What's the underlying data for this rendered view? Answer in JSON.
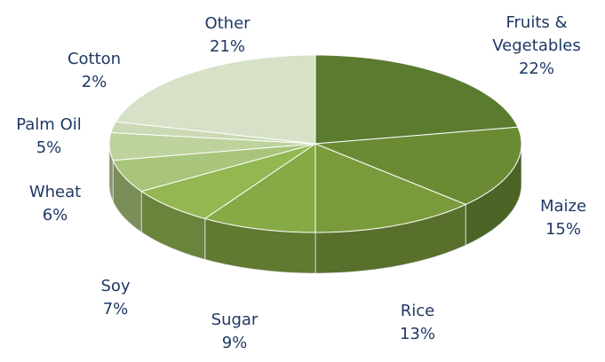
{
  "chart_data": {
    "type": "pie3d",
    "categories": [
      "Fruits & Vegetables",
      "Maize",
      "Rice",
      "Sugar",
      "Soy",
      "Wheat",
      "Palm Oil",
      "Cotton",
      "Other"
    ],
    "values": [
      22,
      15,
      13,
      9,
      7,
      6,
      5,
      2,
      21
    ],
    "value_labels": [
      "22%",
      "15%",
      "13%",
      "9%",
      "7%",
      "6%",
      "5%",
      "2%",
      "21%"
    ],
    "colors": [
      "#5b7b2f",
      "#6a8b34",
      "#7a9b3c",
      "#86aa45",
      "#93b852",
      "#a9c57c",
      "#bdd29d",
      "#cbd9b4",
      "#d6e1c7"
    ]
  }
}
